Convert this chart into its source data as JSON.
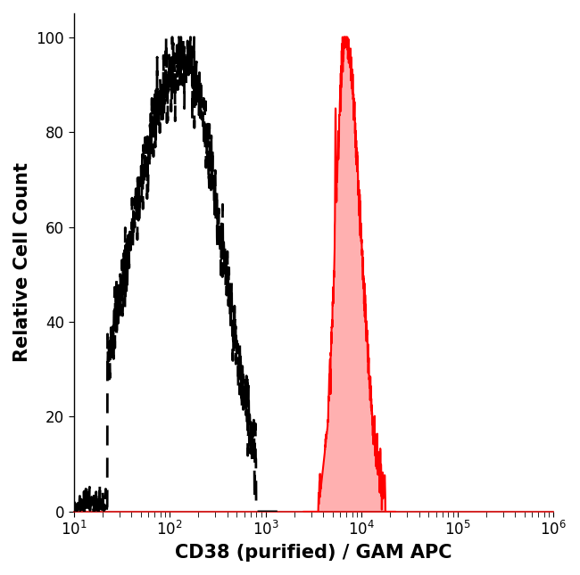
{
  "title": "",
  "xlabel": "CD38 (purified) / GAM APC",
  "ylabel": "Relative Cell Count",
  "xlim_log": [
    1,
    6
  ],
  "ylim": [
    0,
    105
  ],
  "yticks": [
    0,
    20,
    40,
    60,
    80,
    100
  ],
  "background_color": "#ffffff",
  "dashed_color": "#000000",
  "red_fill_color": "#ffb0b0",
  "red_line_color": "#ff0000",
  "xlabel_fontsize": 15,
  "ylabel_fontsize": 15,
  "tick_fontsize": 12,
  "spine_bottom_color": "#cc0000"
}
